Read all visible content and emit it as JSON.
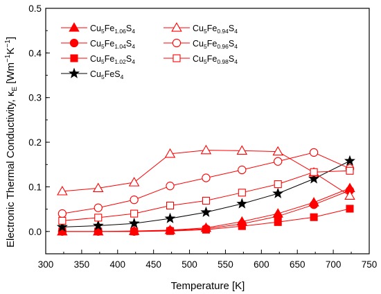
{
  "chart_data": {
    "type": "line",
    "xlabel": "Temperature [K]",
    "ylabel": {
      "main": "Electronic Thermal Conductivity, κ",
      "sub": "E",
      "unit_open": " [Wm",
      "sup1": "−1",
      "unit_mid": "K",
      "sup2": "−1",
      "unit_close": "]"
    },
    "xlim": [
      300,
      750
    ],
    "ylim": [
      -0.05,
      0.5
    ],
    "x_ticks": [
      "300",
      "350",
      "400",
      "450",
      "500",
      "550",
      "600",
      "650",
      "700",
      "750"
    ],
    "y_ticks": [
      "0.0",
      "0.1",
      "0.2",
      "0.3",
      "0.4",
      "0.5"
    ],
    "grid": false,
    "legend_placement": "top-left",
    "colors": {
      "red": "#ff0000",
      "black": "#000000"
    },
    "series": [
      {
        "name": "Cu5Fe1.06S4",
        "label": {
          "a": "Cu",
          "s1": "5",
          "b": "Fe",
          "s2": "1.06",
          "c": "S",
          "s3": "4"
        },
        "marker": "triangle",
        "filled": true,
        "color": "#ff0000",
        "x": [
          323,
          373,
          423,
          473,
          523,
          573,
          623,
          673,
          723
        ],
        "y": [
          0.0,
          0.0,
          0.001,
          0.003,
          0.008,
          0.022,
          0.04,
          0.065,
          0.097
        ]
      },
      {
        "name": "Cu5Fe1.04S4",
        "label": {
          "a": "Cu",
          "s1": "5",
          "b": "Fe",
          "s2": "1.04",
          "c": "S",
          "s3": "4"
        },
        "marker": "circle",
        "filled": true,
        "color": "#ff0000",
        "x": [
          323,
          373,
          423,
          473,
          523,
          573,
          623,
          673,
          723
        ],
        "y": [
          0.0,
          0.0,
          0.0,
          0.002,
          0.006,
          0.017,
          0.034,
          0.06,
          0.092
        ]
      },
      {
        "name": "Cu5Fe1.02S4",
        "label": {
          "a": "Cu",
          "s1": "5",
          "b": "Fe",
          "s2": "1.02",
          "c": "S",
          "s3": "4"
        },
        "marker": "square",
        "filled": true,
        "color": "#ff0000",
        "x": [
          323,
          373,
          423,
          473,
          523,
          573,
          623,
          673,
          723
        ],
        "y": [
          0.0,
          0.0,
          0.0,
          0.001,
          0.004,
          0.012,
          0.021,
          0.032,
          0.051
        ]
      },
      {
        "name": "Cu5FeS4",
        "label": {
          "a": "Cu",
          "s1": "5",
          "b": "FeS",
          "s2": "",
          "c": "",
          "s3": "4"
        },
        "marker": "star",
        "filled": true,
        "color": "#000000",
        "x": [
          323,
          373,
          423,
          473,
          523,
          573,
          623,
          673,
          723
        ],
        "y": [
          0.01,
          0.013,
          0.018,
          0.029,
          0.043,
          0.062,
          0.085,
          0.118,
          0.158
        ]
      },
      {
        "name": "Cu5Fe0.94S4",
        "label": {
          "a": "Cu",
          "s1": "5",
          "b": "Fe",
          "s2": "0.94",
          "c": "S",
          "s3": "4"
        },
        "marker": "triangle",
        "filled": false,
        "color": "#ff0000",
        "x": [
          323,
          373,
          423,
          473,
          523,
          573,
          623,
          673,
          723
        ],
        "y": [
          0.09,
          0.097,
          0.11,
          0.174,
          0.182,
          0.181,
          0.179,
          0.132,
          0.08
        ]
      },
      {
        "name": "Cu5Fe0.96S4",
        "label": {
          "a": "Cu",
          "s1": "5",
          "b": "Fe",
          "s2": "0.96",
          "c": "S",
          "s3": "4"
        },
        "marker": "circle",
        "filled": false,
        "color": "#ff0000",
        "x": [
          323,
          373,
          423,
          473,
          523,
          573,
          623,
          673,
          723
        ],
        "y": [
          0.04,
          0.053,
          0.071,
          0.102,
          0.12,
          0.138,
          0.157,
          0.177,
          0.141
        ]
      },
      {
        "name": "Cu5Fe0.98S4",
        "label": {
          "a": "Cu",
          "s1": "5",
          "b": "Fe",
          "s2": "0.98",
          "c": "S",
          "s3": "4"
        },
        "marker": "square",
        "filled": false,
        "color": "#ff0000",
        "x": [
          323,
          373,
          423,
          473,
          523,
          573,
          623,
          673,
          723
        ],
        "y": [
          0.024,
          0.031,
          0.04,
          0.058,
          0.069,
          0.087,
          0.106,
          0.133,
          0.136
        ]
      }
    ]
  }
}
